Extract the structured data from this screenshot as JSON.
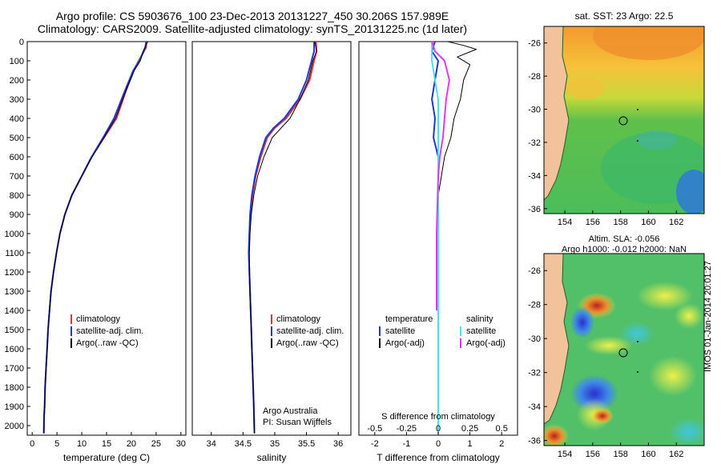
{
  "header": {
    "line1": "Argo profile: CS 5903676_100 23-Dec-2013 20131227_450 30.206S 157.989E",
    "line2": "Climatology: CARS2009. Satellite-adjusted climatology: synTS_20131225.nc (1d later)"
  },
  "colors": {
    "climatology": "#e8312a",
    "satellite": "#1f36d6",
    "argo": "#000000",
    "sal_sat": "#4fe0e6",
    "sal_argo": "#e23ae6",
    "land": "#f2c29a",
    "coast": "#1f9a3a"
  },
  "chart_data": [
    {
      "id": "temperature",
      "type": "line",
      "xlabel": "temperature (deg C)",
      "ylabel": "",
      "xlim": [
        -1,
        31
      ],
      "ylim": [
        2050,
        0
      ],
      "y_inverted": true,
      "xticks": [
        0,
        5,
        10,
        15,
        20,
        25,
        30
      ],
      "yticks": [
        0,
        100,
        200,
        300,
        400,
        500,
        600,
        700,
        800,
        900,
        1000,
        1100,
        1200,
        1300,
        1400,
        1500,
        1600,
        1700,
        1800,
        1900,
        2000
      ],
      "legend_position": "lower-middle",
      "legend": [
        "climatology",
        "satellite-adj. clim.",
        "Argo(..raw -QC)"
      ],
      "series": [
        {
          "name": "climatology",
          "color": "#e8312a",
          "width": 2,
          "points": [
            [
              23,
              0
            ],
            [
              23,
              30
            ],
            [
              21.5,
              100
            ],
            [
              20.5,
              150
            ],
            [
              19,
              250
            ],
            [
              17,
              400
            ],
            [
              14.5,
              500
            ],
            [
              12,
              600
            ],
            [
              10,
              700
            ],
            [
              8,
              800
            ],
            [
              6.6,
              900
            ],
            [
              5.6,
              1000
            ],
            [
              4.9,
              1100
            ],
            [
              4.3,
              1200
            ],
            [
              3.8,
              1300
            ],
            [
              3.5,
              1400
            ],
            [
              3.2,
              1500
            ],
            [
              3.0,
              1600
            ],
            [
              2.8,
              1700
            ],
            [
              2.6,
              1800
            ],
            [
              2.5,
              1900
            ],
            [
              2.4,
              1950
            ],
            [
              2.35,
              2040
            ]
          ]
        },
        {
          "name": "satellite-adj. clim.",
          "color": "#1f36d6",
          "width": 2,
          "points": [
            [
              23,
              0
            ],
            [
              22.8,
              30
            ],
            [
              21.6,
              100
            ],
            [
              20.4,
              150
            ],
            [
              18.8,
              250
            ],
            [
              16.5,
              400
            ],
            [
              14.3,
              500
            ],
            [
              12,
              600
            ],
            [
              10,
              700
            ],
            [
              8,
              800
            ],
            [
              6.6,
              900
            ],
            [
              5.6,
              1000
            ],
            [
              4.9,
              1100
            ],
            [
              4.3,
              1200
            ],
            [
              3.8,
              1300
            ],
            [
              3.5,
              1400
            ],
            [
              3.2,
              1500
            ],
            [
              3.0,
              1600
            ],
            [
              2.8,
              1700
            ],
            [
              2.6,
              1800
            ],
            [
              2.5,
              1900
            ],
            [
              2.4,
              1950
            ],
            [
              2.35,
              2040
            ]
          ]
        },
        {
          "name": "Argo(..raw -QC)",
          "color": "#000000",
          "width": 1,
          "points": [
            [
              23.3,
              0
            ],
            [
              22.6,
              40
            ],
            [
              21.8,
              100
            ],
            [
              20.6,
              150
            ],
            [
              19,
              250
            ],
            [
              16.8,
              400
            ],
            [
              14.5,
              500
            ],
            [
              12.1,
              600
            ],
            [
              10,
              700
            ],
            [
              8,
              800
            ],
            [
              6.6,
              900
            ],
            [
              5.6,
              1000
            ],
            [
              4.9,
              1100
            ],
            [
              4.3,
              1200
            ],
            [
              3.8,
              1300
            ],
            [
              3.5,
              1400
            ],
            [
              3.2,
              1500
            ],
            [
              3.0,
              1600
            ],
            [
              2.8,
              1700
            ],
            [
              2.6,
              1800
            ],
            [
              2.5,
              1900
            ],
            [
              2.4,
              1950
            ],
            [
              2.35,
              2040
            ]
          ]
        }
      ]
    },
    {
      "id": "salinity",
      "type": "line",
      "xlabel": "salinity",
      "ylabel": "",
      "xlim": [
        33.7,
        36.2
      ],
      "ylim": [
        2050,
        0
      ],
      "y_inverted": true,
      "xticks": [
        34,
        34.5,
        35,
        35.5,
        36
      ],
      "legend_position": "lower-right",
      "legend": [
        "climatology",
        "satellite-adj. clim.",
        "Argo(..raw -QC)"
      ],
      "annotation": [
        "Argo Australia",
        "PI: Susan Wijffels"
      ],
      "series": [
        {
          "name": "climatology",
          "color": "#e8312a",
          "width": 2,
          "points": [
            [
              35.65,
              0
            ],
            [
              35.66,
              50
            ],
            [
              35.62,
              100
            ],
            [
              35.55,
              200
            ],
            [
              35.4,
              300
            ],
            [
              35.18,
              400
            ],
            [
              35.0,
              450
            ],
            [
              34.88,
              500
            ],
            [
              34.78,
              600
            ],
            [
              34.7,
              700
            ],
            [
              34.65,
              800
            ],
            [
              34.62,
              900
            ],
            [
              34.6,
              1000
            ],
            [
              34.59,
              1100
            ],
            [
              34.6,
              1200
            ],
            [
              34.61,
              1300
            ],
            [
              34.62,
              1400
            ],
            [
              34.63,
              1500
            ],
            [
              34.64,
              1600
            ],
            [
              34.65,
              1700
            ],
            [
              34.66,
              1800
            ],
            [
              34.67,
              1900
            ],
            [
              34.68,
              2040
            ]
          ]
        },
        {
          "name": "satellite-adj. clim.",
          "color": "#1f36d6",
          "width": 2,
          "points": [
            [
              35.62,
              0
            ],
            [
              35.62,
              50
            ],
            [
              35.58,
              100
            ],
            [
              35.5,
              200
            ],
            [
              35.37,
              300
            ],
            [
              35.15,
              400
            ],
            [
              34.98,
              450
            ],
            [
              34.86,
              500
            ],
            [
              34.76,
              600
            ],
            [
              34.69,
              700
            ],
            [
              34.64,
              800
            ],
            [
              34.61,
              900
            ],
            [
              34.6,
              1000
            ],
            [
              34.59,
              1100
            ],
            [
              34.6,
              1200
            ],
            [
              34.61,
              1300
            ],
            [
              34.62,
              1400
            ],
            [
              34.63,
              1500
            ],
            [
              34.64,
              1600
            ],
            [
              34.65,
              1700
            ],
            [
              34.66,
              1800
            ],
            [
              34.67,
              1900
            ],
            [
              34.68,
              2040
            ]
          ]
        },
        {
          "name": "Argo(..raw -QC)",
          "color": "#000000",
          "width": 1,
          "points": [
            [
              35.63,
              0
            ],
            [
              35.66,
              50
            ],
            [
              35.6,
              100
            ],
            [
              35.53,
              200
            ],
            [
              35.4,
              300
            ],
            [
              35.24,
              400
            ],
            [
              35.1,
              450
            ],
            [
              34.96,
              500
            ],
            [
              34.83,
              600
            ],
            [
              34.73,
              700
            ],
            [
              34.67,
              800
            ],
            [
              34.63,
              900
            ],
            [
              34.61,
              1000
            ],
            [
              34.6,
              1100
            ],
            [
              34.6,
              1200
            ],
            [
              34.61,
              1300
            ],
            [
              34.62,
              1400
            ],
            [
              34.63,
              1500
            ],
            [
              34.64,
              1600
            ],
            [
              34.65,
              1700
            ],
            [
              34.66,
              1800
            ],
            [
              34.67,
              1900
            ],
            [
              34.68,
              2040
            ]
          ]
        }
      ]
    },
    {
      "id": "difference",
      "type": "line",
      "xlabel": "T difference from climatology",
      "xlabel_top": "S difference from climatology",
      "xlim": [
        -2.5,
        2.5
      ],
      "ylim": [
        2050,
        0
      ],
      "y_inverted": true,
      "xticks": [
        -2,
        -1,
        0,
        1,
        2
      ],
      "sticks": [
        {
          "label": "-0.5",
          "pos": -2
        },
        {
          "label": "-0.25",
          "pos": -1
        },
        {
          "label": "0",
          "pos": 0
        },
        {
          "label": "0.25",
          "pos": 1
        },
        {
          "label": "0.5",
          "pos": 2
        }
      ],
      "legend_position": "lower-middle",
      "legend_left": {
        "heading": "temperature",
        "entries": [
          "satellite",
          "Argo(-adj)"
        ]
      },
      "legend_right": {
        "heading": "salinity",
        "entries": [
          "satellite",
          "Argo(-adj)"
        ]
      },
      "series": [
        {
          "name": "T satellite",
          "color": "#1f36d6",
          "width": 2,
          "points": [
            [
              -0.1,
              0
            ],
            [
              -0.2,
              50
            ],
            [
              0,
              100
            ],
            [
              -0.1,
              200
            ],
            [
              -0.2,
              300
            ],
            [
              -0.1,
              400
            ],
            [
              -0.15,
              500
            ],
            [
              0,
              600
            ],
            [
              0,
              700
            ],
            [
              0,
              1000
            ],
            [
              0,
              2040
            ]
          ]
        },
        {
          "name": "T Argo(-adj)",
          "color": "#000000",
          "width": 1,
          "points": [
            [
              0.3,
              0
            ],
            [
              0.8,
              20
            ],
            [
              1.2,
              40
            ],
            [
              0.6,
              80
            ],
            [
              1.0,
              120
            ],
            [
              0.8,
              200
            ],
            [
              0.7,
              300
            ],
            [
              0.5,
              400
            ],
            [
              0.4,
              500
            ],
            [
              0.2,
              600
            ],
            [
              0.1,
              700
            ],
            [
              0,
              800
            ],
            [
              0,
              2040
            ]
          ]
        },
        {
          "name": "S satellite",
          "color": "#4fe0e6",
          "width": 2,
          "points": [
            [
              -0.2,
              0
            ],
            [
              -0.2,
              100
            ],
            [
              -0.1,
              200
            ],
            [
              0,
              300
            ],
            [
              0,
              2040
            ]
          ]
        },
        {
          "name": "S Argo(-adj)",
          "color": "#e23ae6",
          "width": 2,
          "points": [
            [
              -0.2,
              0
            ],
            [
              -0.1,
              50
            ],
            [
              0.2,
              100
            ],
            [
              0.35,
              200
            ],
            [
              0.25,
              300
            ],
            [
              0.2,
              400
            ],
            [
              0.15,
              500
            ],
            [
              0.05,
              600
            ],
            [
              0,
              700
            ],
            [
              -0.05,
              1000
            ],
            [
              -0.05,
              1400
            ]
          ]
        }
      ]
    },
    {
      "id": "sst_map",
      "type": "heatmap",
      "title": "sat. SST: 23 Argo: 22.5",
      "xlim": [
        152.5,
        164
      ],
      "ylim": [
        -36.3,
        -25
      ],
      "xticks": [
        154,
        156,
        158,
        160,
        162
      ],
      "yticks": [
        -26,
        -28,
        -30,
        -32,
        -34,
        -36
      ]
    },
    {
      "id": "sla_map",
      "type": "heatmap",
      "title": "Altim. SLA: -0.056",
      "subtitle": "Argo h1000: -0.012 h2000: NaN",
      "xlim": [
        152.5,
        164
      ],
      "ylim": [
        -36.3,
        -25
      ],
      "xticks": [
        154,
        156,
        158,
        160,
        162
      ],
      "yticks": [
        -26,
        -28,
        -30,
        -32,
        -34,
        -36
      ],
      "side_label": "IMOS 01-Jan-2014 20:01:27"
    }
  ]
}
